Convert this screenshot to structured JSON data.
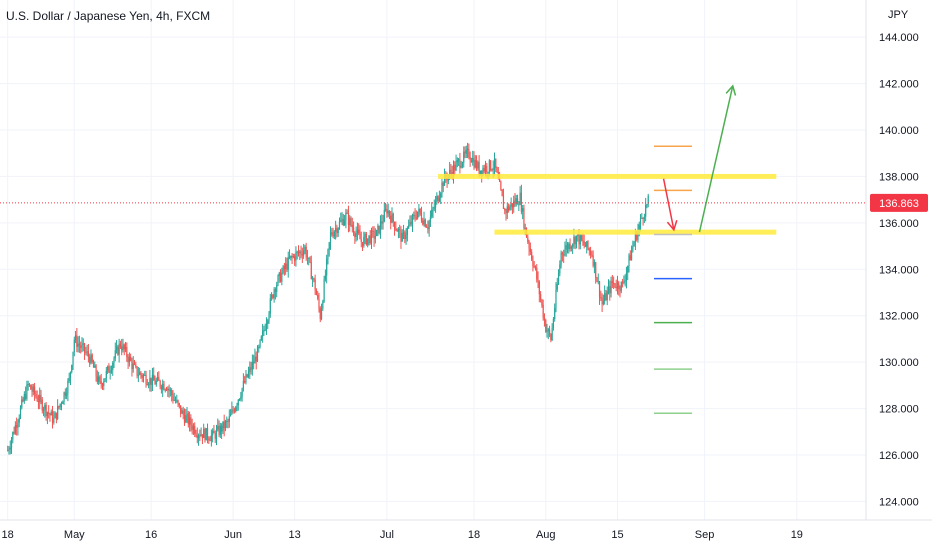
{
  "chart_data": {
    "type": "candlestick",
    "title": "U.S. Dollar / Japanese Yen, 4h, FXCM",
    "unit": "JPY",
    "ylim": [
      123.2,
      145.6
    ],
    "y_ticks": [
      "124.000",
      "126.000",
      "128.000",
      "130.000",
      "132.000",
      "134.000",
      "136.000",
      "138.000",
      "140.000",
      "142.000",
      "144.000"
    ],
    "x_ticks": [
      {
        "label": "18",
        "day": 0
      },
      {
        "label": "May",
        "day": 13
      },
      {
        "label": "16",
        "day": 28
      },
      {
        "label": "Jun",
        "day": 44
      },
      {
        "label": "13",
        "day": 56
      },
      {
        "label": "Jul",
        "day": 74
      },
      {
        "label": "18",
        "day": 91
      },
      {
        "label": "Aug",
        "day": 105
      },
      {
        "label": "15",
        "day": 119
      },
      {
        "label": "Sep",
        "day": 136
      },
      {
        "label": "19",
        "day": 154
      }
    ],
    "x_day_range": [
      -1.5,
      167.5
    ],
    "price_path": [
      [
        0,
        126.2
      ],
      [
        4,
        129.0
      ],
      [
        9,
        127.5
      ],
      [
        12,
        129.2
      ],
      [
        13,
        131.0
      ],
      [
        16,
        130.2
      ],
      [
        18,
        129.0
      ],
      [
        20,
        129.8
      ],
      [
        22,
        130.8
      ],
      [
        25,
        129.6
      ],
      [
        28,
        129.2
      ],
      [
        31,
        129.0
      ],
      [
        34,
        127.8
      ],
      [
        37,
        127.0
      ],
      [
        40,
        126.8
      ],
      [
        43,
        127.4
      ],
      [
        46,
        129.0
      ],
      [
        49,
        130.5
      ],
      [
        52,
        133.2
      ],
      [
        55,
        134.4
      ],
      [
        58,
        134.9
      ],
      [
        60,
        133.2
      ],
      [
        61,
        132.0
      ],
      [
        63,
        135.5
      ],
      [
        66,
        136.3
      ],
      [
        69,
        135.2
      ],
      [
        72,
        135.5
      ],
      [
        74,
        136.6
      ],
      [
        77,
        135.3
      ],
      [
        80,
        136.5
      ],
      [
        82,
        135.9
      ],
      [
        85,
        137.8
      ],
      [
        88,
        138.6
      ],
      [
        90,
        139.0
      ],
      [
        92,
        138.3
      ],
      [
        95,
        138.5
      ],
      [
        97,
        136.5
      ],
      [
        100,
        137.1
      ],
      [
        101,
        135.7
      ],
      [
        103,
        133.9
      ],
      [
        105,
        131.5
      ],
      [
        106,
        131.0
      ],
      [
        108,
        134.7
      ],
      [
        111,
        135.4
      ],
      [
        114,
        134.7
      ],
      [
        116,
        132.5
      ],
      [
        118,
        133.4
      ],
      [
        120,
        133.3
      ],
      [
        122,
        135.0
      ],
      [
        124,
        136.4
      ],
      [
        125,
        136.9
      ]
    ],
    "last_price": "136.863",
    "annotations": {
      "resistance_zone": {
        "y": 138.0,
        "start_day": 84,
        "end_day": 150
      },
      "support_zone": {
        "y": 135.6,
        "start_day": 95,
        "end_day": 150
      },
      "arrows": [
        {
          "color": "#f23645",
          "from": [
            128,
            137.9
          ],
          "to": [
            130,
            135.7
          ]
        },
        {
          "color": "#4caf50",
          "from": [
            135,
            135.6
          ],
          "to": [
            141.5,
            141.9
          ]
        }
      ],
      "levels": [
        {
          "y": 139.3,
          "color": "#f7a44b"
        },
        {
          "y": 137.4,
          "color": "#f7a44b"
        },
        {
          "y": 135.5,
          "color": "#c0c0c0"
        },
        {
          "y": 133.6,
          "color": "#2962ff"
        },
        {
          "y": 131.7,
          "color": "#4caf50"
        },
        {
          "y": 129.7,
          "color": "#8fd18f"
        },
        {
          "y": 127.8,
          "color": "#8fd18f"
        }
      ]
    },
    "colors": {
      "up": "#26a69a",
      "down": "#ef5350",
      "zone": "#ffeb3b",
      "price_line": "#f23645"
    }
  }
}
